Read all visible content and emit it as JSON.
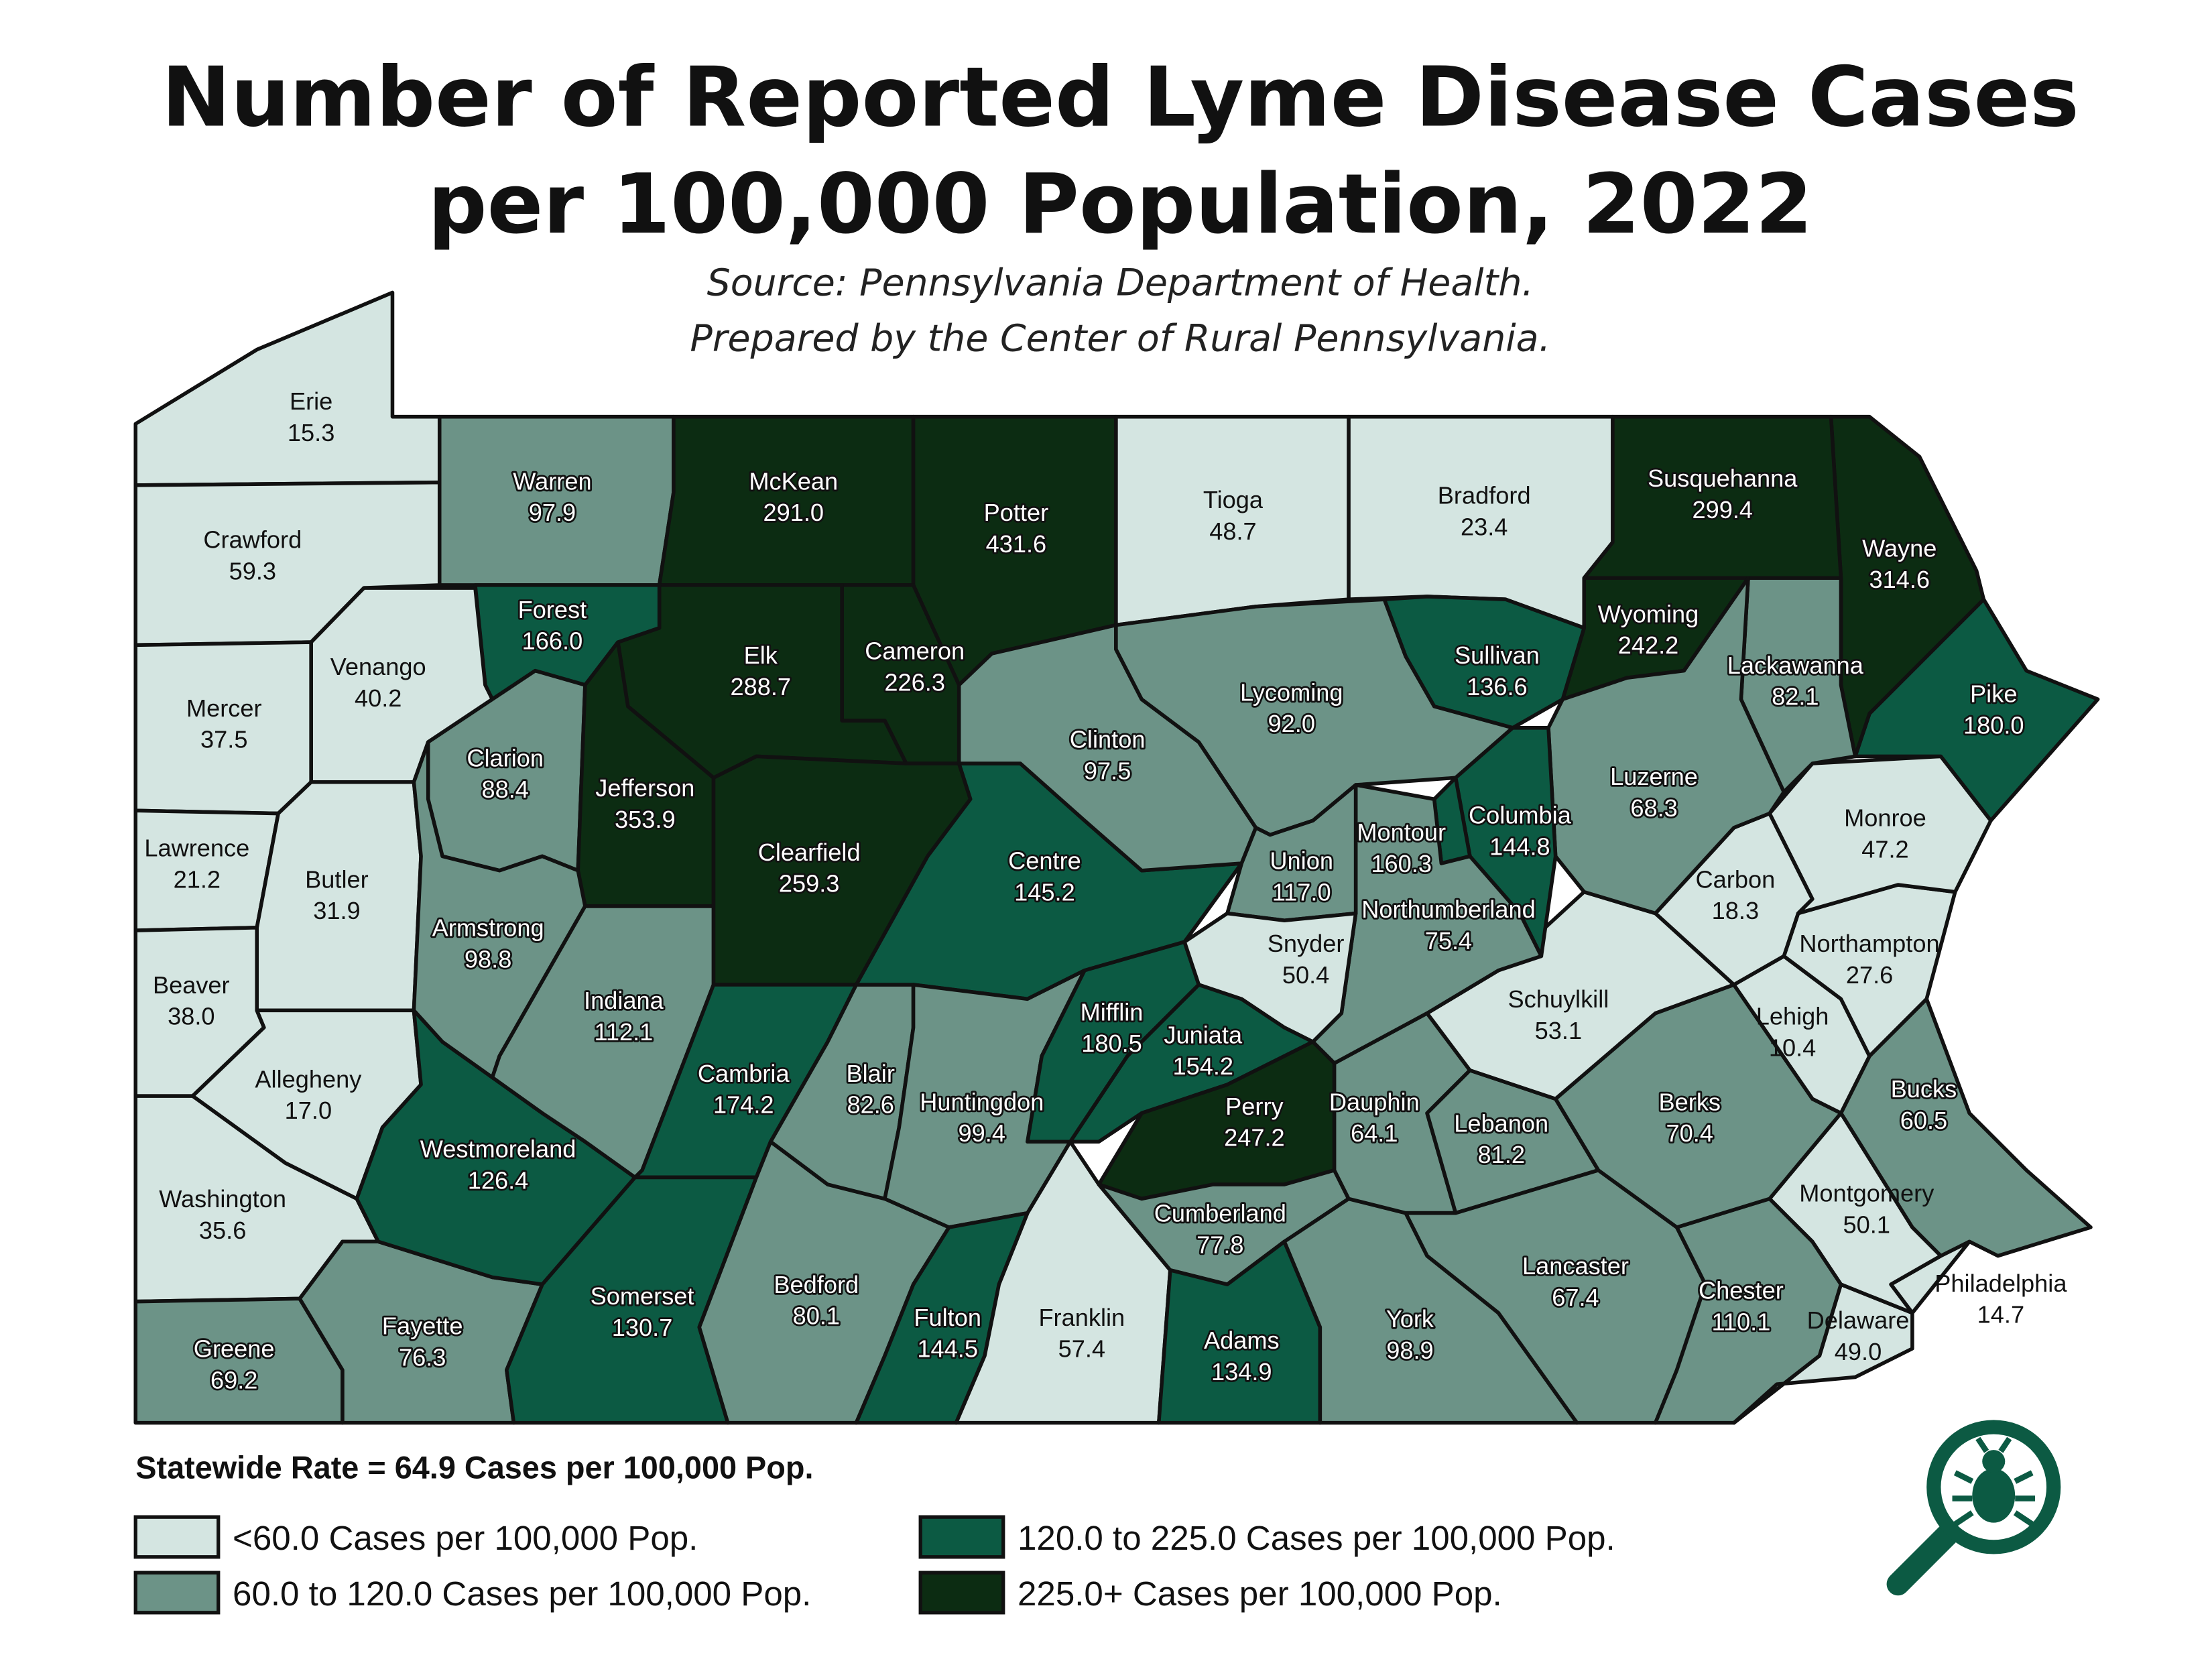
{
  "title": [
    "Number of Reported Lyme Disease Cases",
    "per 100,000 Population, 2022"
  ],
  "source": [
    "Source: Pennsylvania Department of Health.",
    "Prepared by the Center of Rural Pennsylvania."
  ],
  "statewide_rate": "Statewide Rate = 64.9 Cases per 100,000 Pop.",
  "legend": [
    {
      "label": "<60.0 Cases per 100,000 Pop.",
      "color": "#d4e5e1",
      "max": 60
    },
    {
      "label": "60.0 to 120.0 Cases per 100,000 Pop.",
      "color": "#6c9387",
      "max": 120
    },
    {
      "label": "120.0 to 225.0 Cases per 100,000 Pop.",
      "color": "#0c5a43",
      "max": 225
    },
    {
      "label": "225.0+ Cases per 100,000 Pop.",
      "color": "#0c2c12"
    }
  ],
  "counties": {
    "names": [
      "Erie",
      "Crawford",
      "Warren",
      "McKean",
      "Potter",
      "Cameron",
      "Elk",
      "Forest",
      "Venango",
      "Mercer",
      "Lawrence",
      "Butler",
      "Beaver",
      "Allegheny",
      "Washington",
      "Greene",
      "Fayette",
      "Westmoreland",
      "Clarion",
      "Jefferson",
      "Armstrong",
      "Indiana",
      "Clearfield",
      "Cambria",
      "Somerset",
      "Bedford",
      "Blair",
      "Centre",
      "Clinton",
      "Huntingdon",
      "Fulton",
      "Franklin",
      "Mifflin",
      "Juniata",
      "Perry",
      "Cumberland",
      "Adams",
      "York",
      "Dauphin",
      "Lebanon",
      "Lancaster",
      "Chester",
      "Delaware",
      "Philadelphia",
      "Montgomery",
      "Bucks",
      "Berks",
      "Schuylkill",
      "Lehigh",
      "Northampton",
      "Carbon",
      "Monroe",
      "Pike",
      "Wayne",
      "Susquehanna",
      "Lackawanna",
      "Wyoming",
      "Luzerne",
      "Bradford",
      "Tioga",
      "Sullivan",
      "Lycoming",
      "Columbia",
      "Montour",
      "Northumberland",
      "Union",
      "Snyder"
    ],
    "values": [
      15.3,
      59.3,
      97.9,
      291.0,
      431.6,
      226.3,
      288.7,
      166.0,
      40.2,
      37.5,
      21.2,
      31.9,
      38.0,
      17.0,
      35.6,
      69.2,
      76.3,
      126.4,
      88.4,
      353.9,
      98.8,
      112.1,
      259.3,
      174.2,
      130.7,
      80.1,
      82.6,
      145.2,
      97.5,
      99.4,
      144.5,
      57.4,
      180.5,
      154.2,
      247.2,
      77.8,
      134.9,
      98.9,
      64.1,
      81.2,
      67.4,
      110.1,
      49.0,
      14.7,
      50.1,
      60.5,
      70.4,
      53.1,
      10.4,
      27.6,
      18.3,
      47.2,
      180.0,
      314.6,
      299.4,
      82.1,
      242.2,
      68.3,
      23.4,
      48.7,
      136.6,
      92.0,
      144.8,
      160.3,
      75.4,
      117.0,
      50.4
    ],
    "value_labels": [
      "15.3",
      "59.3",
      "97.9",
      "291.0",
      "431.6",
      "226.3",
      "288.7",
      "166.0",
      "40.2",
      "37.5",
      "21.2",
      "31.9",
      "38.0",
      "17.0",
      "35.6",
      "69.2",
      "76.3",
      "126.4",
      "88.4",
      "353.9",
      "98.8",
      "112.1",
      "259.3",
      "174.2",
      "130.7",
      "80.1",
      "82.6",
      "145.2",
      "97.5",
      "99.4",
      "144.5",
      "57.4",
      "180.5",
      "154.2",
      "247.2",
      "77.8",
      "134.9",
      "98.9",
      "64.1",
      "81.2",
      "67.4",
      "110.1",
      "49.0",
      "14.7",
      "50.1",
      "60.5",
      "70.4",
      "53.1",
      "10.4",
      "27.6",
      "18.3",
      "47.2",
      "180.0",
      "314.6",
      "299.4",
      "82.1",
      "242.2",
      "68.3",
      "23.4",
      "48.7",
      "136.6",
      "92.0",
      "144.8",
      "160.3",
      "75.4",
      "117.0",
      "50.4"
    ]
  }
}
